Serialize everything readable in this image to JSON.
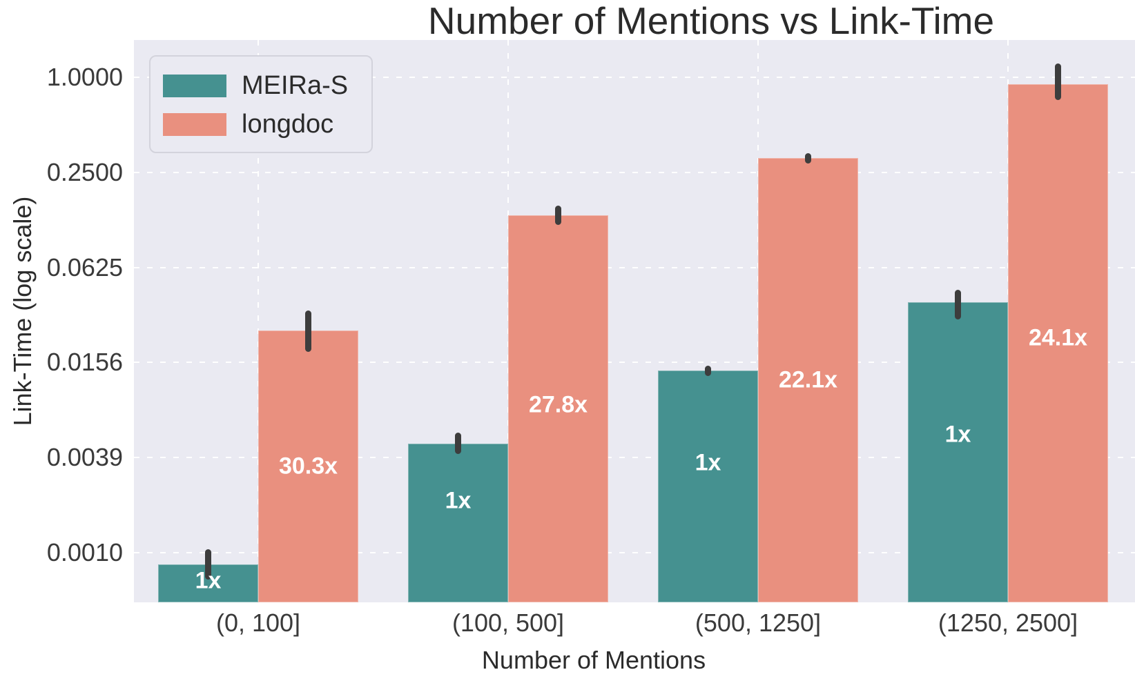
{
  "chart_data": {
    "type": "bar",
    "title": "Number of Mentions vs Link-Time",
    "xlabel": "Number of Mentions",
    "ylabel": "Link-Time (log scale)",
    "yscale": "log base 4",
    "grid": true,
    "legend_position": "upper left",
    "plot_bg_color": "#eaeaf2",
    "grid_color": "#ffffff",
    "errorbar_color": "#3d3d3d",
    "bar_label_color": "#ffffff",
    "ytick_values": [
      1.0,
      0.25,
      0.0625,
      0.015625,
      0.00390625,
      0.0009765625
    ],
    "ytick_labels": [
      "1.0000",
      "0.2500",
      "0.0625",
      "0.0156",
      "0.0039",
      "0.0010"
    ],
    "categories": [
      "(0, 100]",
      "(100, 500]",
      "(500, 1250]",
      "(1250, 2500]"
    ],
    "series": [
      {
        "name": "MEIRa-S",
        "color": "#459190",
        "values": [
          0.00082,
          0.0048,
          0.0139,
          0.0375
        ],
        "err_lo": [
          0.00066,
          0.0041,
          0.0128,
          0.0292
        ],
        "err_hi": [
          0.00103,
          0.0056,
          0.0149,
          0.045
        ],
        "bar_labels": [
          "1x",
          "1x",
          "1x",
          "1x"
        ],
        "label_fracs": [
          0.44,
          0.36,
          0.4,
          0.44
        ]
      },
      {
        "name": "longdoc",
        "color": "#e9907f",
        "values": [
          0.0249,
          0.134,
          0.307,
          0.9
        ],
        "err_lo": [
          0.0182,
          0.116,
          0.284,
          0.72
        ],
        "err_hi": [
          0.0333,
          0.154,
          0.33,
          1.22
        ],
        "bar_labels": [
          "30.3x",
          "27.8x",
          "22.1x",
          "24.1x"
        ],
        "label_fracs": [
          0.5,
          0.49,
          0.5,
          0.49
        ]
      }
    ]
  }
}
